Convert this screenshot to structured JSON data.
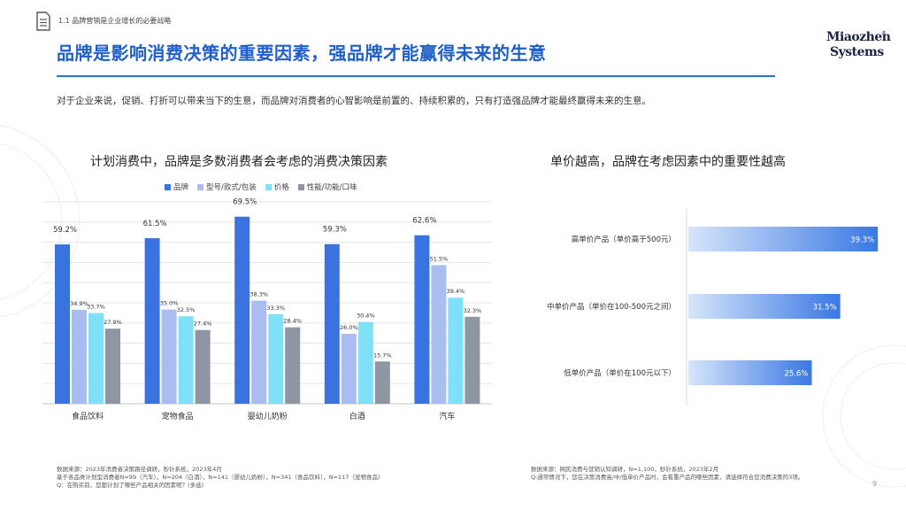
{
  "header": {
    "breadcrumb": "1.1 品牌营销是企业增长的必要战略",
    "headline": "品牌是影响消费决策的重要因素，强品牌才能赢得未来的生意",
    "logo_line1": "Miaozhen",
    "logo_line2": "Systems",
    "logo_mark": "®"
  },
  "intro": "对于企业来说，促销、打折可以带来当下的生意，而品牌对消费者的心智影响是前置的、持续积累的，只有打造强品牌才能最终赢得未来的生意。",
  "colors": {
    "accent": "#1f5fcc",
    "brand": "#3a73e0",
    "model": "#a9bdf0",
    "price": "#7fe0f7",
    "perf": "#8e96a3"
  },
  "chart_data": [
    {
      "type": "bar",
      "title": "计划消费中，品牌是多数消费者会考虑的消费决策因素",
      "categories": [
        "食品饮料",
        "宠物食品",
        "婴幼儿奶粉",
        "白酒",
        "汽车"
      ],
      "series": [
        {
          "name": "品牌",
          "values": [
            59.2,
            61.5,
            69.5,
            59.3,
            62.6
          ],
          "labels": [
            "59.2%",
            "61.5%",
            "69.5%",
            "59.3%",
            "62.6%"
          ]
        },
        {
          "name": "型号/款式/包装",
          "values": [
            34.9,
            35.0,
            38.3,
            26.0,
            51.5
          ],
          "labels": [
            "34.9%",
            "35.0%",
            "38.3%",
            "26.0%",
            "51.5%"
          ]
        },
        {
          "name": "价格",
          "values": [
            33.7,
            32.5,
            33.3,
            30.4,
            39.4
          ],
          "labels": [
            "33.7%",
            "32.5%",
            "33.3%",
            "30.4%",
            "39.4%"
          ]
        },
        {
          "name": "性能/功能/口味",
          "values": [
            27.9,
            27.4,
            28.4,
            15.7,
            32.3
          ],
          "labels": [
            "27.9%",
            "27.4%",
            "28.4%",
            "15.7%",
            "32.3%"
          ]
        }
      ],
      "ylim": [
        0,
        75
      ],
      "grid": true,
      "legend": "top"
    },
    {
      "type": "bar",
      "orientation": "horizontal",
      "title": "单价越高，品牌在考虑因素中的重要性越高",
      "categories": [
        "高单价产品（单价高于500元）",
        "中单价产品（单价在100-500元之间）",
        "低单价产品（单价在100元以下）"
      ],
      "values": [
        39.3,
        31.5,
        25.6
      ],
      "labels": [
        "39.3%",
        "31.5%",
        "25.6%"
      ],
      "xlim": [
        0,
        40
      ]
    }
  ],
  "footnotes": {
    "left": [
      "数据来源：2023年消费者决策路径调研，秒针系统，2023年4月",
      "基于各品类计划型消费者N=99（汽车），N=204（白酒），N=141（婴幼儿奶粉），N=341（食品饮料），N=117（宠物食品）",
      "Q：在购买前，您都计划了哪些产品相关的因素呢？(多选)"
    ],
    "right": [
      "数据来源：网民消费与营销认知调研，N=1,100，秒针系统，2023年2月",
      "Q:通常情况下，您在决策消费高/中/低单价产品时，会看重产品的哪些因素，请选择符合您消费决策的3项。"
    ]
  },
  "page_number": "9"
}
